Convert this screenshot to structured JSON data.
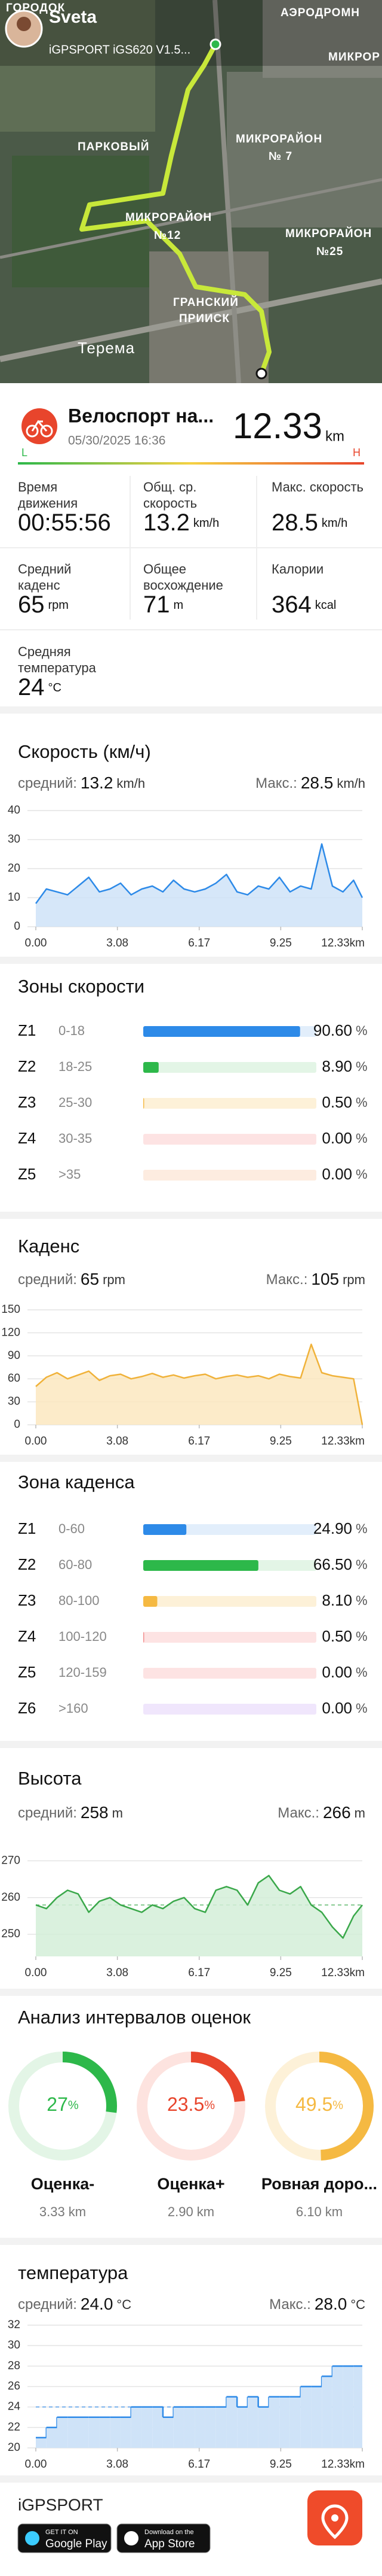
{
  "map": {
    "user": "Sveta",
    "device": "iGPSPORT iGS620 V1.5...",
    "labels": [
      "ГОРОДОК",
      "АЭРОДРОМН",
      "МИКРОР",
      "ПАРКОВЫЙ",
      "МИКРОРАЙОН",
      "№ 7",
      "МИКРОРАЙОН",
      "№12",
      "МИКРОРАЙОН",
      "№25",
      "ГРАНСКИЙ",
      "ПРИИСК",
      "Терема"
    ]
  },
  "activity": {
    "title": "Велоспорт на...",
    "date": "05/30/2025 16:36",
    "distance": "12.33",
    "unit": "km",
    "low": "L",
    "high": "H"
  },
  "stats": [
    {
      "label": "Время движения",
      "value": "00:55:56"
    },
    {
      "label": "Общ. ср. скорость",
      "value": "13.2",
      "unit": "km/h"
    },
    {
      "label": "Макс. скорость",
      "value": "28.5",
      "unit": "km/h"
    },
    {
      "label": "Средний каденс",
      "value": "65",
      "unit": "rpm"
    },
    {
      "label": "Общее восхождение",
      "value": "71",
      "unit": "m"
    },
    {
      "label": "Калории",
      "value": "364",
      "unit": "kcal"
    },
    {
      "label": "Средняя температура",
      "value": "24",
      "unit": "°C"
    }
  ],
  "chart_data": [
    {
      "type": "area",
      "title": "Скорость (км/ч)",
      "color": "#2d8ae8",
      "fill": "#cfe3f8",
      "summary": [
        {
          "label": "средний:",
          "value": 13.2,
          "unit": "km/h"
        },
        {
          "label": "Макс.:",
          "value": 28.5,
          "unit": "km/h"
        }
      ],
      "x": [
        0,
        0.4,
        0.8,
        1.2,
        1.6,
        2,
        2.4,
        2.8,
        3.2,
        3.6,
        4,
        4.4,
        4.8,
        5.2,
        5.6,
        6,
        6.4,
        6.8,
        7.2,
        7.6,
        8,
        8.4,
        8.8,
        9.2,
        9.6,
        10,
        10.4,
        10.8,
        11.2,
        11.6,
        12,
        12.33
      ],
      "values": [
        8,
        13,
        12,
        11,
        14,
        17,
        12,
        13,
        15,
        11,
        13,
        14,
        12,
        16,
        13,
        12,
        13,
        15,
        18,
        12,
        11,
        14,
        13,
        17,
        12,
        14,
        13,
        28.5,
        14,
        12,
        16,
        10
      ],
      "xlim": [
        0,
        12.33
      ],
      "ylim": [
        0,
        40
      ],
      "yticks": [
        0,
        10,
        20,
        30,
        40
      ],
      "xticks": [
        {
          "value": 0,
          "label": "0.00"
        },
        3.08,
        6.17,
        9.25,
        {
          "value": 12.33,
          "label": "12.33km"
        }
      ],
      "grid": true
    },
    {
      "type": "zones",
      "title": "Зоны скорости",
      "unit": "%",
      "xlim": [
        0,
        100
      ],
      "categories": [
        "Z1",
        "Z2",
        "Z3",
        "Z4",
        "Z5"
      ],
      "ranges": [
        "0-18",
        "18-25",
        "25-30",
        "30-35",
        ">35"
      ],
      "values": [
        90.6,
        8.9,
        0.5,
        0,
        0
      ],
      "value_labels": [
        "90.60",
        "8.90",
        "0.50",
        "0.00",
        "0.00"
      ],
      "colors": [
        "#2d8ae8",
        "#2db84a",
        "#f5b942",
        "#f28b8b",
        "#f5c8a8"
      ],
      "backgrounds": [
        "#e2eefb",
        "#e3f5e6",
        "#fdf1d8",
        "#fde3e3",
        "#fdece0"
      ]
    },
    {
      "type": "area",
      "title": "Каденс",
      "color": "#f0b23a",
      "fill": "#fbe8bf",
      "summary": [
        {
          "label": "средний:",
          "value": 65,
          "unit": "rpm"
        },
        {
          "label": "Макс.:",
          "value": 105,
          "unit": "rpm"
        }
      ],
      "x": [
        0,
        0.4,
        0.8,
        1.2,
        1.6,
        2,
        2.4,
        2.8,
        3.2,
        3.6,
        4,
        4.4,
        4.8,
        5.2,
        5.6,
        6,
        6.4,
        6.8,
        7.2,
        7.6,
        8,
        8.4,
        8.8,
        9.2,
        9.6,
        10,
        10.4,
        10.8,
        11.2,
        11.6,
        12,
        12.33
      ],
      "values": [
        50,
        62,
        68,
        60,
        65,
        70,
        58,
        64,
        66,
        60,
        63,
        67,
        62,
        65,
        61,
        64,
        66,
        60,
        63,
        65,
        62,
        64,
        60,
        66,
        63,
        61,
        105,
        68,
        64,
        62,
        60,
        0
      ],
      "xlim": [
        0,
        12.33
      ],
      "ylim": [
        0,
        150
      ],
      "yticks": [
        0,
        30,
        60,
        90,
        120,
        150
      ],
      "xticks": [
        {
          "value": 0,
          "label": "0.00"
        },
        3.08,
        6.17,
        9.25,
        {
          "value": 12.33,
          "label": "12.33km"
        }
      ],
      "grid": true
    },
    {
      "type": "zones",
      "title": "Зона каденса",
      "unit": "%",
      "xlim": [
        0,
        100
      ],
      "categories": [
        "Z1",
        "Z2",
        "Z3",
        "Z4",
        "Z5",
        "Z6"
      ],
      "ranges": [
        "0-60",
        "60-80",
        "80-100",
        "100-120",
        "120-159",
        ">160"
      ],
      "values": [
        24.9,
        66.5,
        8.1,
        0.5,
        0,
        0
      ],
      "value_labels": [
        "24.90",
        "66.50",
        "8.10",
        "0.50",
        "0.00",
        "0.00"
      ],
      "colors": [
        "#2d8ae8",
        "#2db84a",
        "#f5b942",
        "#f28b8b",
        "#f5a0a0",
        "#c9a8f0"
      ],
      "backgrounds": [
        "#e2eefb",
        "#e3f5e6",
        "#fdf1d8",
        "#fde3e3",
        "#fde3e3",
        "#f0e6fc"
      ]
    },
    {
      "type": "area",
      "title": "Высота",
      "color": "#3aa84a",
      "fill": "#d4eed8",
      "summary": [
        {
          "label": "средний:",
          "value": 258,
          "unit": "m"
        },
        {
          "label": "Макс.:",
          "value": 266,
          "unit": "m"
        }
      ],
      "x": [
        0,
        0.4,
        0.8,
        1.2,
        1.6,
        2,
        2.4,
        2.8,
        3.2,
        3.6,
        4,
        4.4,
        4.8,
        5.2,
        5.6,
        6,
        6.4,
        6.8,
        7.2,
        7.6,
        8,
        8.4,
        8.8,
        9.2,
        9.6,
        10,
        10.4,
        10.8,
        11.2,
        11.6,
        12,
        12.33
      ],
      "values": [
        258,
        257,
        260,
        262,
        261,
        256,
        259,
        260,
        258,
        257,
        256,
        258,
        257,
        259,
        260,
        257,
        256,
        262,
        263,
        262,
        258,
        264,
        266,
        262,
        261,
        263,
        258,
        256,
        252,
        249,
        255,
        258
      ],
      "xlim": [
        0,
        12.33
      ],
      "ylim": [
        244,
        273
      ],
      "yticks": [
        250,
        260,
        270
      ],
      "xticks": [
        {
          "value": 0,
          "label": "0.00"
        },
        3.08,
        6.17,
        9.25,
        {
          "value": 12.33,
          "label": "12.33km"
        }
      ],
      "grid": true,
      "average_line": true
    },
    {
      "type": "donut",
      "title": "Анализ интервалов оценок",
      "unit": "%",
      "items": [
        {
          "name": "Оценка-",
          "value": 27,
          "distance": "3.33 km",
          "color": "#2db84a",
          "background": "#e3f5e6"
        },
        {
          "name": "Оценка+",
          "value": 23.5,
          "distance": "2.90 km",
          "color": "#e8452c",
          "background": "#fde3df"
        },
        {
          "name": "Ровная доро...",
          "value": 49.5,
          "distance": "6.10 km",
          "color": "#f5b942",
          "background": "#fdf1d8"
        }
      ]
    },
    {
      "type": "step",
      "title": "температура",
      "color": "#2d8ae8",
      "fill": "#cfe3f8",
      "summary": [
        {
          "label": "средний:",
          "value": 24,
          "value_label": "24.0",
          "unit": "°C"
        },
        {
          "label": "Макс.:",
          "value": 28,
          "value_label": "28.0",
          "unit": "°C"
        }
      ],
      "x": [
        0,
        0.4,
        0.8,
        1.2,
        1.6,
        2,
        2.4,
        2.8,
        3.2,
        3.6,
        4,
        4.4,
        4.8,
        5.2,
        5.6,
        6,
        6.4,
        6.8,
        7.2,
        7.6,
        8,
        8.4,
        8.8,
        9.2,
        9.6,
        10,
        10.4,
        10.8,
        11.2,
        11.6,
        12,
        12.33
      ],
      "values": [
        21,
        22,
        23,
        23,
        23,
        23,
        23,
        23,
        23,
        24,
        24,
        24,
        23,
        24,
        24,
        24,
        24,
        24,
        25,
        24,
        25,
        24,
        25,
        25,
        25,
        26,
        26,
        27,
        28,
        28,
        28,
        28
      ],
      "xlim": [
        0,
        12.33
      ],
      "ylim": [
        20,
        32
      ],
      "yticks": [
        20,
        22,
        24,
        26,
        28,
        30,
        32
      ],
      "xticks": [
        {
          "value": 0,
          "label": "0.00"
        },
        3.08,
        6.17,
        9.25,
        {
          "value": 12.33,
          "label": "12.33km"
        }
      ],
      "grid": true,
      "average_line": true
    }
  ],
  "footer": {
    "brand": "iGPSPORT",
    "google_top": "GET IT ON",
    "google": "Google Play",
    "apple_top": "Download on the",
    "apple": "App Store"
  }
}
